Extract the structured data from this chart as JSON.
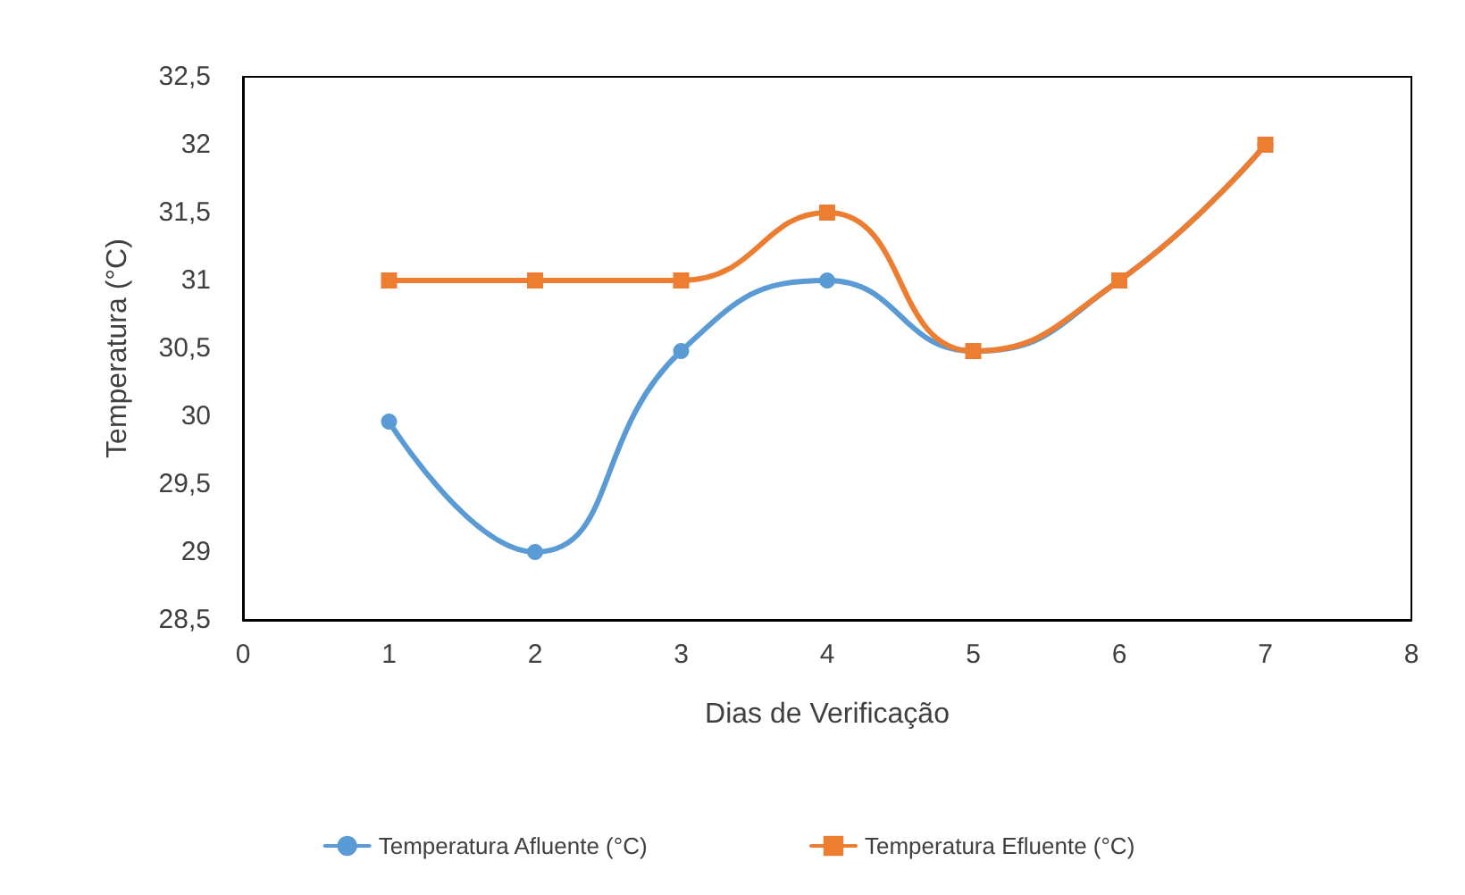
{
  "chart_data": {
    "type": "line",
    "xlabel": "Dias de Verificação",
    "ylabel": "Temperatura (°C)",
    "x": [
      1,
      2,
      3,
      4,
      5,
      6,
      7
    ],
    "series": [
      {
        "name": "Temperatura Afluente (°C)",
        "color": "#5b9bd5",
        "marker": "circle",
        "values": [
          29.96,
          29,
          30.48,
          31,
          30.48,
          31,
          32
        ]
      },
      {
        "name": "Temperatura Efluente (°C)",
        "color": "#ed7d31",
        "marker": "square",
        "values": [
          31,
          31,
          31,
          31.5,
          30.48,
          31,
          32
        ]
      }
    ],
    "xlim": [
      0,
      8
    ],
    "xticks": [
      0,
      1,
      2,
      3,
      4,
      5,
      6,
      7,
      8
    ],
    "ylim": [
      28.5,
      32.5
    ],
    "yticks": [
      {
        "value": 28.5,
        "label": "28,5"
      },
      29,
      {
        "value": 29.5,
        "label": "29,5"
      },
      30,
      {
        "value": 30.5,
        "label": "30,5"
      },
      31,
      {
        "value": 31.5,
        "label": "31,5"
      },
      32,
      {
        "value": 32.5,
        "label": "32,5"
      }
    ],
    "grid": false,
    "legend": "bottom",
    "line_style": "solid"
  }
}
